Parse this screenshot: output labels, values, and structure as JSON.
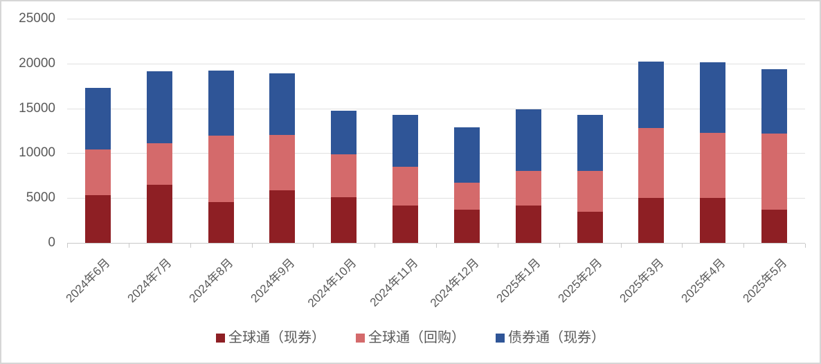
{
  "chart_data": {
    "type": "bar",
    "stacked": true,
    "title": "",
    "xlabel": "",
    "ylabel": "",
    "categories": [
      "2024年6月",
      "2024年7月",
      "2024年8月",
      "2024年9月",
      "2024年10月",
      "2024年11月",
      "2024年12月",
      "2025年1月",
      "2025年2月",
      "2025年3月",
      "2025年4月",
      "2025年5月"
    ],
    "series": [
      {
        "name": "全球通（现券）",
        "color": "#8E1F24",
        "values": [
          5300,
          6500,
          4550,
          5900,
          5100,
          4200,
          3700,
          4200,
          3450,
          5050,
          5000,
          3700
        ]
      },
      {
        "name": "全球通（回购）",
        "color": "#D46A6B",
        "values": [
          5150,
          4600,
          7400,
          6100,
          4750,
          4300,
          3050,
          3850,
          4600,
          7750,
          7300,
          8500
        ]
      },
      {
        "name": "债券通（现券）",
        "color": "#2F5597",
        "values": [
          6850,
          8050,
          7250,
          6900,
          4900,
          5800,
          6100,
          6850,
          6250,
          7450,
          7850,
          7200
        ]
      }
    ],
    "stack_totals": [
      17300,
      19150,
      19200,
      18900,
      14750,
      14300,
      12850,
      14900,
      14300,
      20250,
      20150,
      19400
    ],
    "ylim": [
      0,
      25000
    ],
    "ytick_interval": 5000,
    "yticks": [
      "0",
      "5000",
      "10000",
      "15000",
      "20000",
      "25000"
    ],
    "grid": true,
    "legend_position": "bottom"
  },
  "style": {
    "text_color": "#595959",
    "grid_color": "#E0E0E0",
    "axis_color": "#C8C8C8",
    "border_color": "#D6D6D6",
    "background": "#FFFFFF",
    "series_colors": [
      "#8E1F24",
      "#D46A6B",
      "#2F5597"
    ]
  }
}
